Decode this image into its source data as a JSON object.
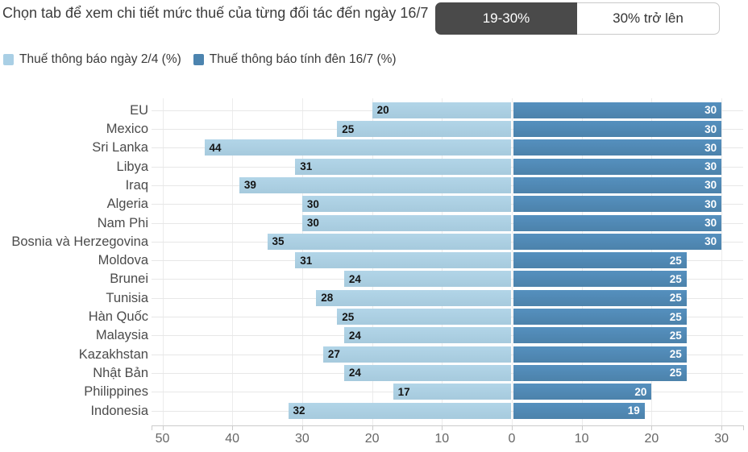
{
  "header": {
    "title": "Chọn tab để xem chi tiết mức thuế của từng đối tác đến ngày 16/7",
    "tabs": [
      {
        "label": "19-30%",
        "active": true
      },
      {
        "label": "30% trở lên",
        "active": false
      }
    ]
  },
  "legend": [
    {
      "label": "Thuế thông báo ngày 2/4 (%)",
      "color": "#a9cfe5"
    },
    {
      "label": "Thuế thông báo tính đên 16/7 (%)",
      "color": "#4c84af"
    }
  ],
  "chart_data": {
    "type": "bar",
    "orientation": "horizontal-diverging",
    "categories": [
      "EU",
      "Mexico",
      "Sri Lanka",
      "Libya",
      "Iraq",
      "Algeria",
      "Nam Phi",
      "Bosnia và Herzegovina",
      "Moldova",
      "Brunei",
      "Tunisia",
      "Hàn Quốc",
      "Malaysia",
      "Kazakhstan",
      "Nhật Bản",
      "Philippines",
      "Indonesia"
    ],
    "series": [
      {
        "name": "Thuế thông báo ngày 2/4 (%)",
        "side": "left",
        "values": [
          20,
          25,
          44,
          31,
          39,
          30,
          30,
          35,
          31,
          24,
          28,
          25,
          24,
          27,
          24,
          17,
          32
        ]
      },
      {
        "name": "Thuế thông báo tính đên 16/7 (%)",
        "side": "right",
        "values": [
          30,
          30,
          30,
          30,
          30,
          30,
          30,
          30,
          25,
          25,
          25,
          25,
          25,
          25,
          25,
          20,
          19
        ]
      }
    ],
    "x_ticks": [
      -50,
      -40,
      -30,
      -20,
      -10,
      0,
      10,
      20,
      30
    ],
    "x_tick_labels": [
      "50",
      "40",
      "30",
      "20",
      "10",
      "0",
      "10",
      "20",
      "30"
    ],
    "xlim": [
      -51.5,
      33.1
    ],
    "grid": true,
    "legend_position": "top",
    "colors": {
      "april": "#a9cfe5",
      "july": "#4c84af"
    }
  }
}
